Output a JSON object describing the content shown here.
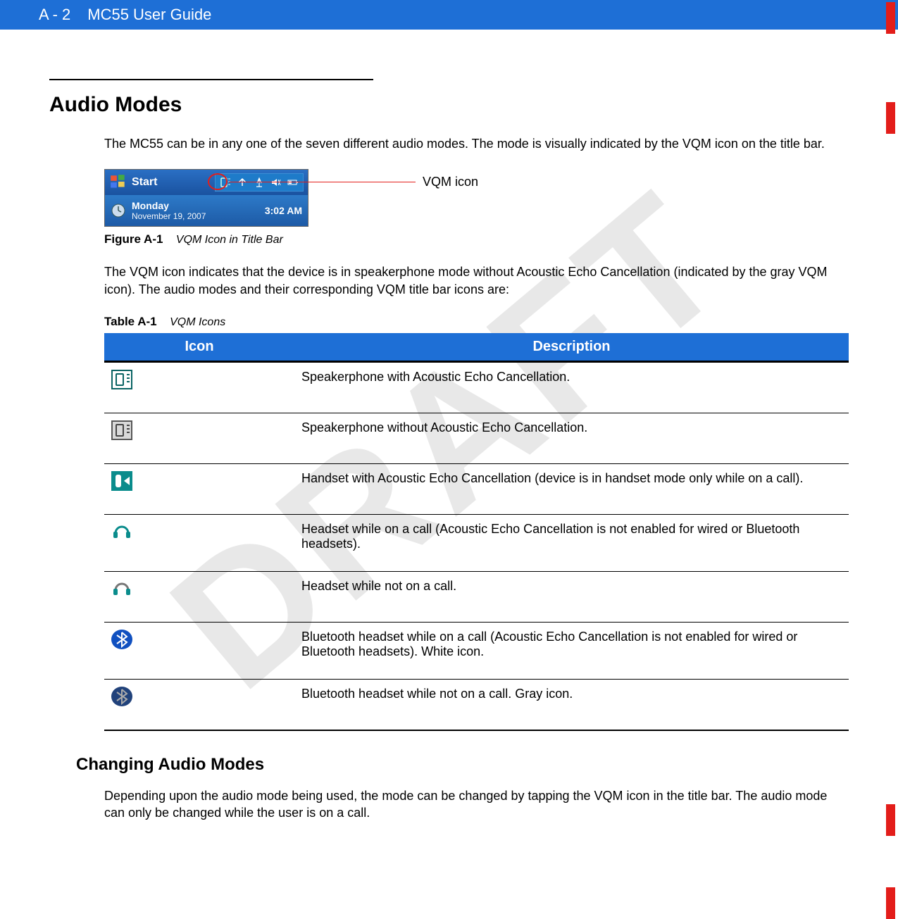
{
  "header": {
    "page_num": "A - 2",
    "guide_title": "MC55 User Guide"
  },
  "watermark": "DRAFT",
  "section": {
    "title": "Audio Modes",
    "intro": "The MC55 can be in any one of the seven different audio modes. The mode is visually indicated by the VQM icon on the title bar."
  },
  "titlebar_screenshot": {
    "start_label": "Start",
    "day": "Monday",
    "date": "November 19, 2007",
    "time": "3:02 AM"
  },
  "callout": {
    "label": "VQM icon"
  },
  "figure_caption": {
    "ref": "Figure A-1",
    "title": "VQM Icon in Title Bar"
  },
  "para2": "The VQM icon indicates that the device is in speakerphone mode without Acoustic Echo Cancellation (indicated by the gray VQM icon). The audio modes and their corresponding VQM title bar icons are:",
  "table_caption": {
    "ref": "Table A-1",
    "title": "VQM Icons"
  },
  "table": {
    "col_icon": "Icon",
    "col_desc": "Description",
    "rows": [
      {
        "icon_type": "speaker_aec",
        "desc": "Speakerphone with Acoustic Echo Cancellation."
      },
      {
        "icon_type": "speaker_noaec",
        "desc": "Speakerphone without Acoustic Echo Cancellation."
      },
      {
        "icon_type": "handset",
        "desc": "Handset with Acoustic Echo Cancellation (device is in handset mode only while on a call)."
      },
      {
        "icon_type": "headset_call",
        "desc": "Headset while on a call (Acoustic Echo Cancellation is not enabled for wired or Bluetooth headsets)."
      },
      {
        "icon_type": "headset_idle",
        "desc": " Headset while not on a call."
      },
      {
        "icon_type": "bt_call",
        "desc": "Bluetooth headset while on a call (Acoustic Echo Cancellation is not enabled for wired or Bluetooth headsets). White icon."
      },
      {
        "icon_type": "bt_idle",
        "desc": "Bluetooth headset while not on a call. Gray icon."
      }
    ]
  },
  "subsection": {
    "title": "Changing Audio Modes",
    "body": "Depending upon the audio mode being used, the mode can be changed by tapping the VQM icon in the title bar. The audio mode can only be changed while the user is on a call."
  },
  "colors": {
    "header_blue": "#1e6fd6",
    "change_bar_red": "#e31d1a",
    "watermark_gray": "#e8e8e8"
  }
}
